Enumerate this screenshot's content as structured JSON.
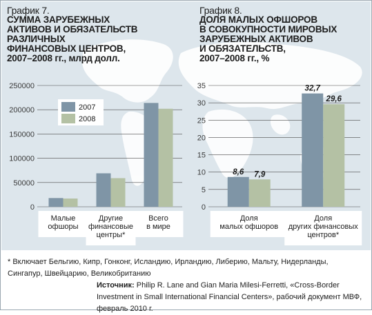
{
  "charts": {
    "left": {
      "number": "График 7.",
      "title": "СУММА ЗАРУБЕЖНЫХ\nАКТИВОВ И ОБЯЗАТЕЛЬСТВ\nРАЗЛИЧНЫХ\nФИНАНСОВЫХ ЦЕНТРОВ,\n2007–2008 гг., млрд долл."
    },
    "right": {
      "number": "График 8.",
      "title": "ДОЛЯ МАЛЫХ ОФШОРОВ\nВ СОВОКУПНОСТИ МИРОВЫХ\nЗАРУБЕЖНЫХ АКТИВОВ\nИ ОБЯЗАТЕЛЬСТВ,\n2007–2008 гг., %"
    }
  },
  "colors": {
    "series_2007": "#7f95a6",
    "series_2008": "#b4c1a4",
    "panel_bg": "#dde6ec",
    "map": "#ffffff",
    "text": "#1c1c1c"
  },
  "chart_data": [
    {
      "type": "bar",
      "categories": [
        "Малые\nофшоры",
        "Другие\nфинансовые\nцентры*",
        "Всего\nв мире"
      ],
      "series": [
        {
          "name": "2007",
          "values": [
            18000,
            69000,
            214000
          ]
        },
        {
          "name": "2008",
          "values": [
            17000,
            59000,
            202000
          ]
        }
      ],
      "yticks": [
        0,
        50000,
        100000,
        150000,
        200000,
        250000
      ],
      "ylim": [
        0,
        250000
      ],
      "legend": "top-left",
      "grid": true
    },
    {
      "type": "bar",
      "categories": [
        "Доля\nмалых офшоров",
        "Доля\nдругих финансовых\nцентров*"
      ],
      "series": [
        {
          "name": "2007",
          "values": [
            8.6,
            32.7
          ],
          "labels": [
            "8,6",
            "32,7"
          ]
        },
        {
          "name": "2008",
          "values": [
            7.9,
            29.6
          ],
          "labels": [
            "7,9",
            "29,6"
          ]
        }
      ],
      "yticks": [
        0,
        5,
        10,
        15,
        20,
        25,
        30,
        35
      ],
      "ylim": [
        0,
        35
      ],
      "grid": true
    }
  ],
  "footnote": "* Включает Бельгию, Кипр, Гонконг, Исландию, Ирландию, Либерию, Мальту, Нидерланды,\nСингапур, Швейцарию, Великобританию",
  "source": {
    "label": "Источник:",
    "text": " Philip R. Lane and Gian Maria Milesi-Ferretti, «Cross-Border Investment in Small International Financial Centers», рабочий документ МВФ, февраль 2010 г."
  }
}
